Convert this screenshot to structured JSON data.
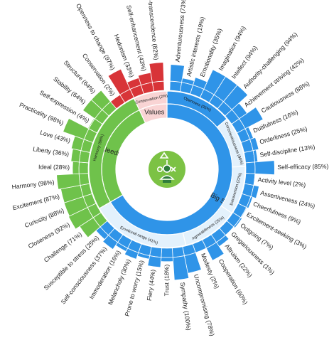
{
  "chart_data": {
    "type": "sunburst",
    "title": "",
    "center_icon": "person-network-icon",
    "inner_ring": [
      {
        "label": "Big 5",
        "color": "#2f94e8",
        "from": 0,
        "to": 240
      },
      {
        "label": "Needs",
        "color": "#6fc24b",
        "from": 240,
        "to": 335
      },
      {
        "label": "Values",
        "color": "#f9d4d4",
        "from": 335,
        "to": 360
      }
    ],
    "mid_ring": [
      {
        "label": "Openness (95%)",
        "color": "#2f94e8",
        "from": 0,
        "to": 50
      },
      {
        "label": "Conscientiousness (96%)",
        "color": "#e3f1fc",
        "from": 50,
        "to": 88
      },
      {
        "label": "Extraversion (22%)",
        "color": "#e3f1fc",
        "from": 88,
        "to": 124
      },
      {
        "label": "Agreeableness (25%)",
        "color": "#e3f1fc",
        "from": 124,
        "to": 166
      },
      {
        "label": "Emotional range (41%)",
        "color": "#e3f1fc",
        "from": 166,
        "to": 240
      },
      {
        "label": "Harmony (98%)",
        "color": "#6fc24b",
        "from": 240,
        "to": 335
      },
      {
        "label": "Conservation (2%)",
        "color": "#f9d4d4",
        "from": 335,
        "to": 360
      }
    ],
    "leaves": [
      {
        "label": "Adventurousness (73%)",
        "value": 73,
        "color": "#2f94e8"
      },
      {
        "label": "Artistic interests (19%)",
        "value": 19,
        "color": "#2f94e8"
      },
      {
        "label": "Emotionality (35%)",
        "value": 35,
        "color": "#2f94e8"
      },
      {
        "label": "Imagination (94%)",
        "value": 94,
        "color": "#2f94e8"
      },
      {
        "label": "Intellect (94%)",
        "value": 94,
        "color": "#2f94e8"
      },
      {
        "label": "Authority-challenging (94%)",
        "value": 94,
        "color": "#2f94e8"
      },
      {
        "label": "Achievement striving (42%)",
        "value": 42,
        "color": "#2f94e8"
      },
      {
        "label": "Cautiousness (88%)",
        "value": 88,
        "color": "#2f94e8"
      },
      {
        "label": "Dutifulness (16%)",
        "value": 16,
        "color": "#2f94e8"
      },
      {
        "label": "Orderliness (25%)",
        "value": 25,
        "color": "#2f94e8"
      },
      {
        "label": "Self-discipline (13%)",
        "value": 13,
        "color": "#2f94e8"
      },
      {
        "label": "Self-efficacy (85%)",
        "value": 85,
        "color": "#2f94e8"
      },
      {
        "label": "Activity level (2%)",
        "value": 2,
        "color": "#2f94e8"
      },
      {
        "label": "Assertiveness (24%)",
        "value": 24,
        "color": "#2f94e8"
      },
      {
        "label": "Cheerfulness (9%)",
        "value": 9,
        "color": "#2f94e8"
      },
      {
        "label": "Excitement-seeking (3%)",
        "value": 3,
        "color": "#2f94e8"
      },
      {
        "label": "Outgoing (7%)",
        "value": 7,
        "color": "#2f94e8"
      },
      {
        "label": "Gregariousness (1%)",
        "value": 1,
        "color": "#2f94e8"
      },
      {
        "label": "Altruism (22%)",
        "value": 22,
        "color": "#2f94e8"
      },
      {
        "label": "Cooperation (60%)",
        "value": 60,
        "color": "#2f94e8"
      },
      {
        "label": "Modesty (2%)",
        "value": 2,
        "color": "#2f94e8"
      },
      {
        "label": "Uncompromising (78%)",
        "value": 78,
        "color": "#2f94e8"
      },
      {
        "label": "Sympathy (100%)",
        "value": 100,
        "color": "#2f94e8"
      },
      {
        "label": "Trust (18%)",
        "value": 18,
        "color": "#2f94e8"
      },
      {
        "label": "Fiery (44%)",
        "value": 44,
        "color": "#2f94e8"
      },
      {
        "label": "Prone to worry (15%)",
        "value": 15,
        "color": "#2f94e8"
      },
      {
        "label": "Melancholy (30%)",
        "value": 30,
        "color": "#2f94e8"
      },
      {
        "label": "Immoderation (16%)",
        "value": 16,
        "color": "#2f94e8"
      },
      {
        "label": "Self-consciousness (37%)",
        "value": 37,
        "color": "#2f94e8"
      },
      {
        "label": "Susceptible to stress (25%)",
        "value": 25,
        "color": "#2f94e8"
      },
      {
        "label": "Challenge (71%)",
        "value": 71,
        "color": "#6fc24b"
      },
      {
        "label": "Closeness (92%)",
        "value": 92,
        "color": "#6fc24b"
      },
      {
        "label": "Curiosity (88%)",
        "value": 88,
        "color": "#6fc24b"
      },
      {
        "label": "Excitement (87%)",
        "value": 87,
        "color": "#6fc24b"
      },
      {
        "label": "Harmony (98%)",
        "value": 98,
        "color": "#6fc24b"
      },
      {
        "label": "Ideal (28%)",
        "value": 28,
        "color": "#6fc24b"
      },
      {
        "label": "Liberty (36%)",
        "value": 36,
        "color": "#6fc24b"
      },
      {
        "label": "Love (43%)",
        "value": 43,
        "color": "#6fc24b"
      },
      {
        "label": "Practicality (98%)",
        "value": 98,
        "color": "#6fc24b"
      },
      {
        "label": "Self-expression (4%)",
        "value": 4,
        "color": "#6fc24b"
      },
      {
        "label": "Stability (64%)",
        "value": 64,
        "color": "#6fc24b"
      },
      {
        "label": "Structure (64%)",
        "value": 64,
        "color": "#6fc24b"
      },
      {
        "label": "Conservation (2%)",
        "value": 2,
        "color": "#d83438"
      },
      {
        "label": "Openness to change (97%)",
        "value": 97,
        "color": "#d83438"
      },
      {
        "label": "Hedonism (33%)",
        "value": 33,
        "color": "#d83438"
      },
      {
        "label": "Self-enhancement (43%)",
        "value": 43,
        "color": "#d83438"
      },
      {
        "label": "Self-transcendence (82%)",
        "value": 82,
        "color": "#d83438"
      }
    ]
  }
}
